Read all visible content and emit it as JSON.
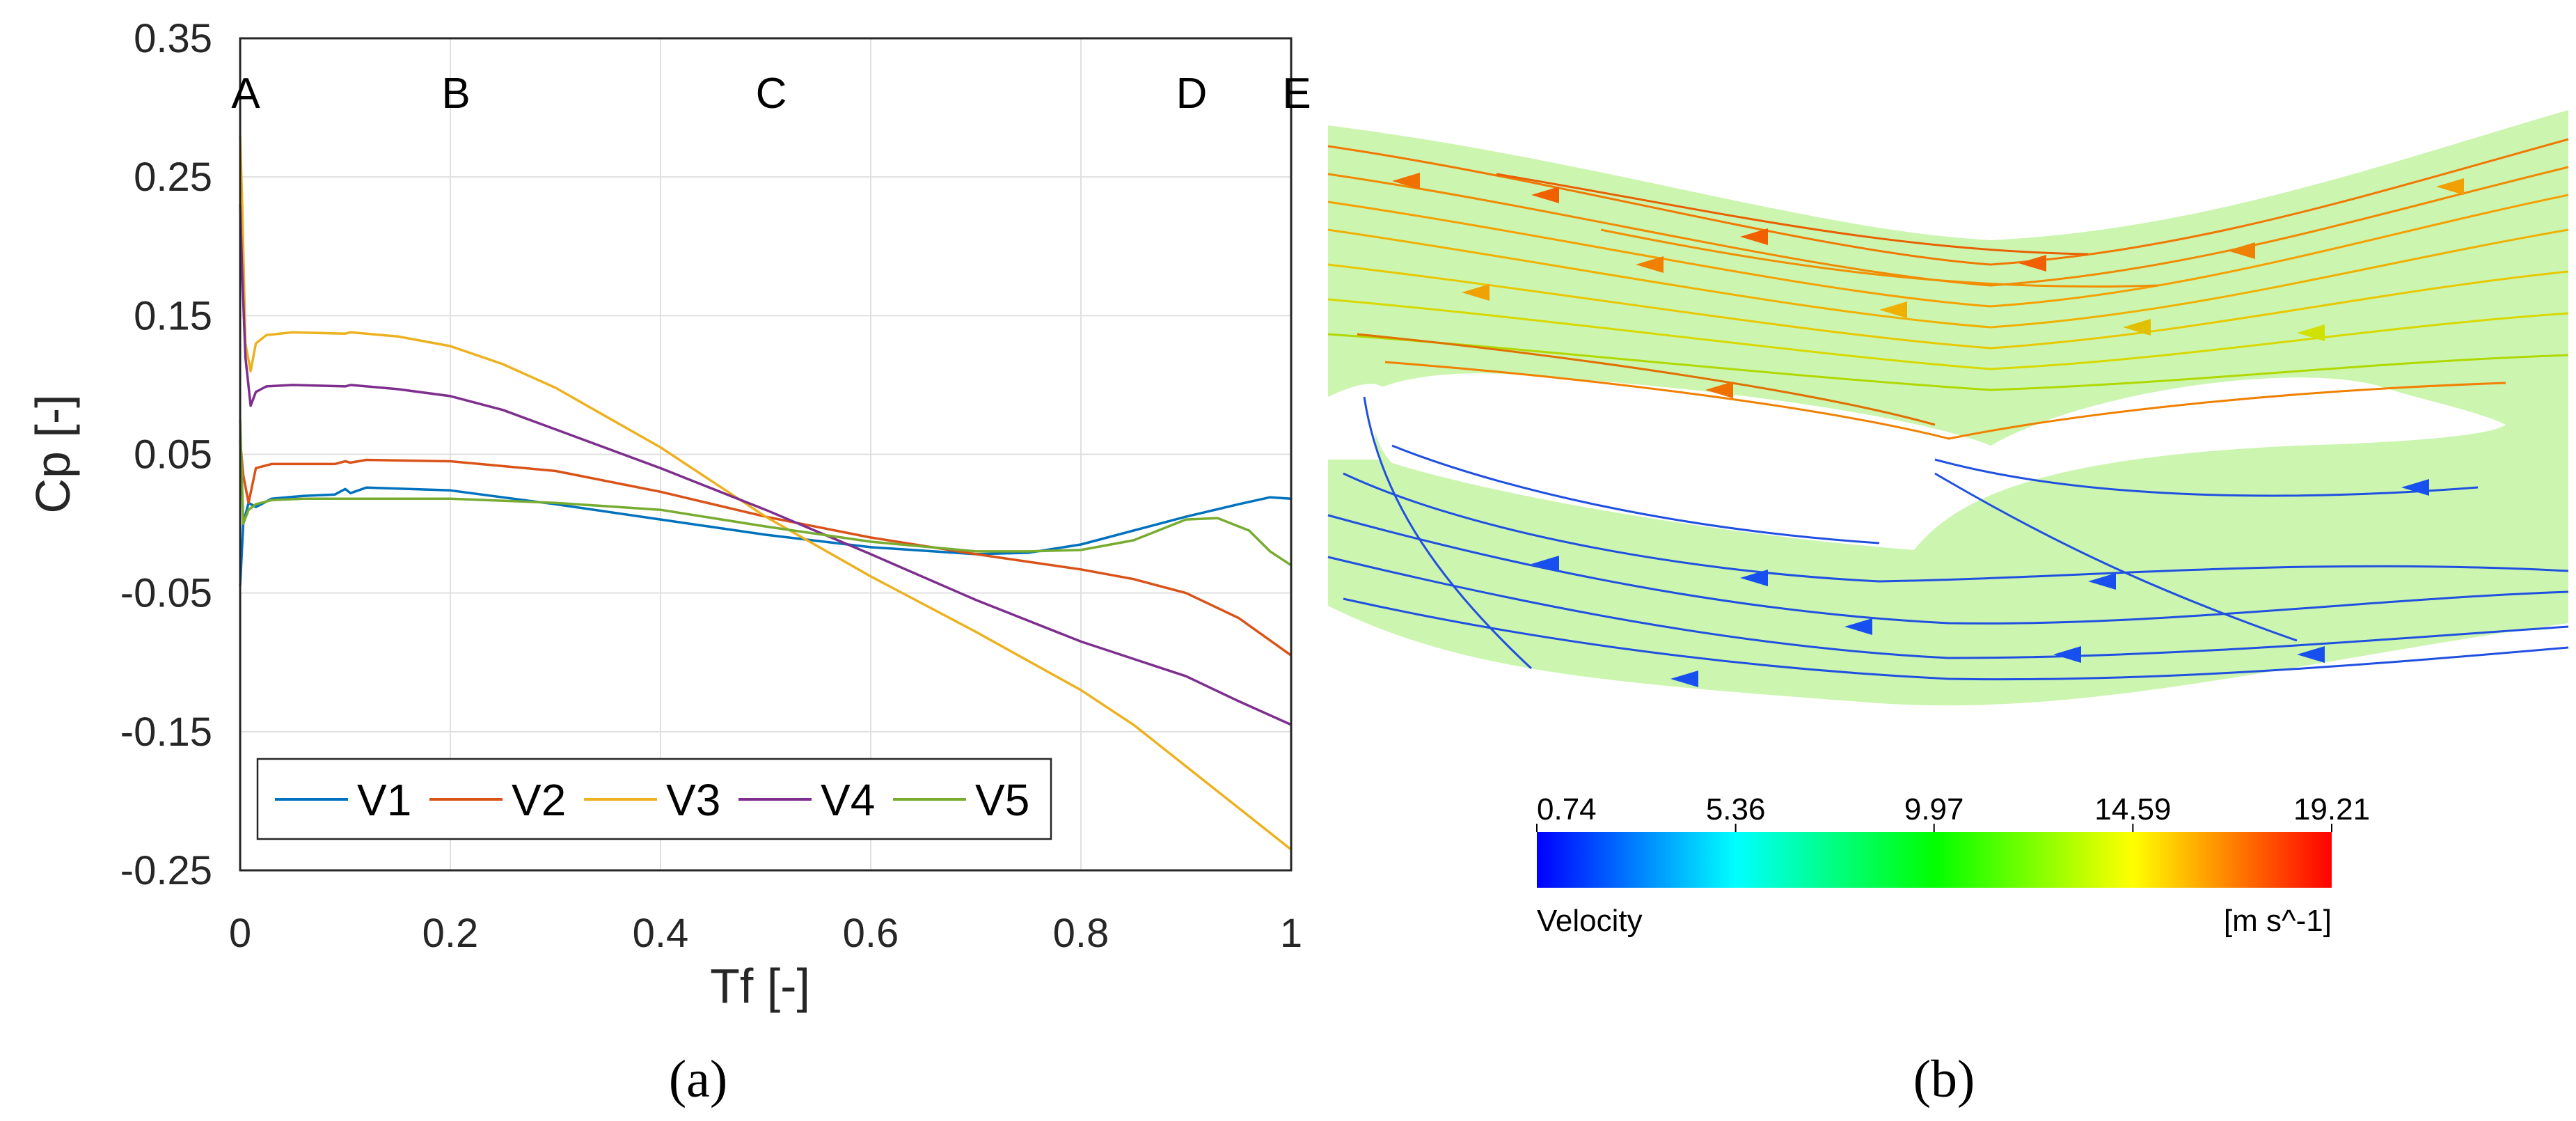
{
  "panels": {
    "a": "(a)",
    "b": "(b)"
  },
  "chart_data": [
    {
      "type": "line",
      "title": "",
      "xlabel": "Tf [-]",
      "ylabel": "Cp [-]",
      "xlim": [
        0,
        1
      ],
      "ylim": [
        -0.25,
        0.35
      ],
      "xticks": [
        0,
        0.2,
        0.4,
        0.6,
        0.8,
        1
      ],
      "xtick_labels": [
        "0",
        "0.2",
        "0.4",
        "0.6",
        "0.8",
        "1"
      ],
      "yticks": [
        0.35,
        0.25,
        0.15,
        0.05,
        -0.05,
        -0.15,
        -0.25
      ],
      "ytick_labels": [
        "0.35",
        "0.25",
        "0.15",
        "0.05",
        "-0.05",
        "-0.15",
        "-0.25"
      ],
      "grid": true,
      "legend_position": "bottom",
      "annotations": [
        {
          "text": "A",
          "x": 0.0
        },
        {
          "text": "B",
          "x": 0.2
        },
        {
          "text": "C",
          "x": 0.5
        },
        {
          "text": "D",
          "x": 0.9
        },
        {
          "text": "E",
          "x": 1.0
        }
      ],
      "series": [
        {
          "name": "V1",
          "color": "#0072BD",
          "x": [
            0,
            0.003,
            0.008,
            0.015,
            0.03,
            0.06,
            0.09,
            0.1,
            0.105,
            0.12,
            0.2,
            0.3,
            0.4,
            0.5,
            0.6,
            0.7,
            0.75,
            0.8,
            0.85,
            0.9,
            0.95,
            0.98,
            1.0
          ],
          "y": [
            -0.045,
            0.0,
            0.015,
            0.012,
            0.018,
            0.02,
            0.021,
            0.025,
            0.022,
            0.026,
            0.024,
            0.014,
            0.003,
            -0.008,
            -0.017,
            -0.022,
            -0.021,
            -0.015,
            -0.005,
            0.005,
            0.014,
            0.019,
            0.018
          ]
        },
        {
          "name": "V2",
          "color": "#D95319",
          "x": [
            0,
            0.003,
            0.008,
            0.015,
            0.03,
            0.06,
            0.09,
            0.1,
            0.105,
            0.12,
            0.2,
            0.3,
            0.4,
            0.5,
            0.6,
            0.7,
            0.8,
            0.85,
            0.9,
            0.95,
            1.0
          ],
          "y": [
            0.06,
            0.035,
            0.015,
            0.04,
            0.043,
            0.043,
            0.043,
            0.045,
            0.044,
            0.046,
            0.045,
            0.038,
            0.023,
            0.005,
            -0.01,
            -0.022,
            -0.033,
            -0.04,
            -0.05,
            -0.068,
            -0.095
          ]
        },
        {
          "name": "V3",
          "color": "#EDB120",
          "x": [
            0,
            0.002,
            0.005,
            0.01,
            0.015,
            0.025,
            0.05,
            0.1,
            0.105,
            0.15,
            0.2,
            0.25,
            0.3,
            0.4,
            0.5,
            0.6,
            0.7,
            0.8,
            0.85,
            0.9,
            0.95,
            1.0
          ],
          "y": [
            0.28,
            0.23,
            0.13,
            0.11,
            0.13,
            0.136,
            0.138,
            0.137,
            0.138,
            0.135,
            0.128,
            0.115,
            0.098,
            0.055,
            0.005,
            -0.038,
            -0.078,
            -0.12,
            -0.145,
            -0.175,
            -0.205,
            -0.235
          ]
        },
        {
          "name": "V4",
          "color": "#7E2F8E",
          "x": [
            0,
            0.002,
            0.005,
            0.01,
            0.015,
            0.025,
            0.05,
            0.1,
            0.105,
            0.15,
            0.2,
            0.25,
            0.3,
            0.4,
            0.5,
            0.6,
            0.7,
            0.8,
            0.9,
            0.95,
            1.0
          ],
          "y": [
            0.23,
            0.18,
            0.12,
            0.085,
            0.095,
            0.099,
            0.1,
            0.099,
            0.1,
            0.097,
            0.092,
            0.082,
            0.068,
            0.04,
            0.01,
            -0.022,
            -0.055,
            -0.085,
            -0.11,
            -0.128,
            -0.145
          ]
        },
        {
          "name": "V5",
          "color": "#77AC30",
          "x": [
            0,
            0.003,
            0.008,
            0.015,
            0.03,
            0.06,
            0.1,
            0.2,
            0.3,
            0.4,
            0.5,
            0.6,
            0.7,
            0.75,
            0.8,
            0.85,
            0.9,
            0.93,
            0.96,
            0.98,
            1.0
          ],
          "y": [
            0.075,
            0.0,
            0.01,
            0.014,
            0.017,
            0.018,
            0.018,
            0.018,
            0.015,
            0.01,
            -0.002,
            -0.013,
            -0.02,
            -0.02,
            -0.019,
            -0.012,
            0.003,
            0.004,
            -0.005,
            -0.02,
            -0.03
          ]
        }
      ]
    },
    {
      "type": "heatmap",
      "title": "Velocity",
      "colorbar_label": "Velocity",
      "units": "[m s^-1]",
      "ticks": [
        0.74,
        5.36,
        9.97,
        14.59,
        19.21
      ],
      "tick_labels": [
        "0.74",
        "5.36",
        "9.97",
        "14.59",
        "19.21"
      ],
      "range": [
        0.74,
        19.21
      ],
      "colormap": [
        "#0000ff",
        "#00ffff",
        "#00ff00",
        "#ffff00",
        "#ff0000"
      ],
      "field_color": "#ccf5b0"
    }
  ]
}
